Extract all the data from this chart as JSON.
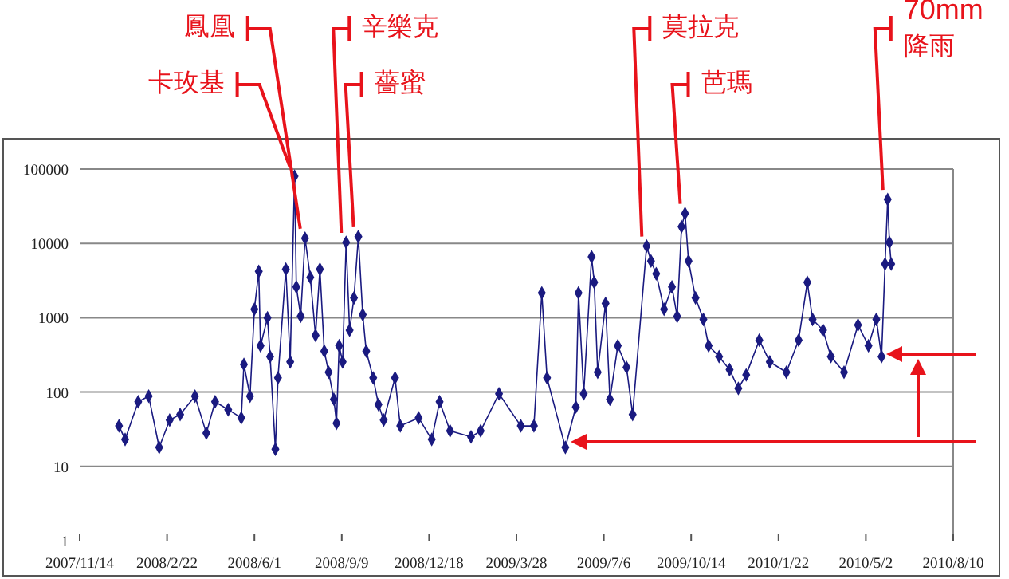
{
  "chart_data": {
    "type": "line",
    "x": [
      "2007-12-29",
      "2008-01-05",
      "2008-01-20",
      "2008-02-01",
      "2008-02-13",
      "2008-02-25",
      "2008-03-08",
      "2008-03-25",
      "2008-04-07",
      "2008-04-17",
      "2008-05-02",
      "2008-05-17",
      "2008-05-20",
      "2008-05-27",
      "2008-06-01",
      "2008-06-06",
      "2008-06-08",
      "2008-06-16",
      "2008-06-19",
      "2008-06-25",
      "2008-06-28",
      "2008-07-07",
      "2008-07-12",
      "2008-07-17",
      "2008-07-19",
      "2008-07-24",
      "2008-07-29",
      "2008-08-04",
      "2008-08-10",
      "2008-08-15",
      "2008-08-20",
      "2008-08-25",
      "2008-08-31",
      "2008-09-03",
      "2008-09-06",
      "2008-09-10",
      "2008-09-14",
      "2008-09-18",
      "2008-09-23",
      "2008-09-28",
      "2008-10-03",
      "2008-10-07",
      "2008-10-15",
      "2008-10-21",
      "2008-10-27",
      "2008-11-09",
      "2008-11-15",
      "2008-12-06",
      "2008-12-21",
      "2008-12-30",
      "2009-01-11",
      "2009-02-04",
      "2009-02-15",
      "2009-03-08",
      "2009-04-02",
      "2009-04-17",
      "2009-04-26",
      "2009-05-02",
      "2009-05-23",
      "2009-06-04",
      "2009-06-07",
      "2009-06-13",
      "2009-06-22",
      "2009-06-25",
      "2009-06-29",
      "2009-07-08",
      "2009-07-13",
      "2009-07-22",
      "2009-08-01",
      "2009-08-08",
      "2009-08-24",
      "2009-08-29",
      "2009-09-04",
      "2009-09-13",
      "2009-09-22",
      "2009-09-28",
      "2009-10-03",
      "2009-10-07",
      "2009-10-11",
      "2009-10-19",
      "2009-10-28",
      "2009-11-03",
      "2009-11-15",
      "2009-11-27",
      "2009-12-07",
      "2009-12-16",
      "2009-12-31",
      "2010-01-12",
      "2010-01-31",
      "2010-02-14",
      "2010-02-24",
      "2010-03-02",
      "2010-03-14",
      "2010-03-23",
      "2010-04-07",
      "2010-04-23",
      "2010-05-05",
      "2010-05-14",
      "2010-05-20",
      "2010-05-24",
      "2010-05-27",
      "2010-05-29",
      "2010-05-31"
    ],
    "series": [
      {
        "color": "#1a1a80",
        "values": [
          35,
          23,
          74,
          88,
          18,
          42,
          50,
          88,
          28,
          74,
          58,
          45,
          235,
          88,
          1300,
          4200,
          420,
          1000,
          300,
          17,
          155,
          4500,
          255,
          80000,
          2600,
          1050,
          11700,
          3500,
          580,
          4500,
          355,
          185,
          80,
          38,
          420,
          255,
          10300,
          680,
          1850,
          12300,
          1100,
          355,
          155,
          68,
          42,
          155,
          35,
          45,
          23,
          74,
          30,
          25,
          30,
          95,
          35,
          35,
          2160,
          155,
          18,
          63,
          2160,
          95,
          6600,
          3000,
          185,
          1560,
          80,
          420,
          215,
          50,
          9200,
          5800,
          3900,
          1300,
          2600,
          1040,
          16800,
          25300,
          5800,
          1850,
          950,
          420,
          300,
          200,
          112,
          170,
          500,
          255,
          185,
          500,
          3000,
          950,
          680,
          300,
          185,
          800,
          420,
          950,
          300,
          5300,
          39000,
          10300,
          5300
        ]
      }
    ],
    "log": "y",
    "ylim": [
      1,
      100000
    ],
    "yticks": [
      1,
      10,
      100,
      1000,
      10000,
      100000
    ],
    "xlim": [
      "2007-11-14",
      "2010-08-10"
    ],
    "xticks": [
      {
        "value": "2007-11-14",
        "label": "2007/11/14"
      },
      {
        "value": "2008-02-22",
        "label": "2008/2/22"
      },
      {
        "value": "2008-06-01",
        "label": "2008/6/1"
      },
      {
        "value": "2008-09-09",
        "label": "2008/9/9"
      },
      {
        "value": "2008-12-18",
        "label": "2008/12/18"
      },
      {
        "value": "2009-03-28",
        "label": "2009/3/28"
      },
      {
        "value": "2009-07-06",
        "label": "2009/7/6"
      },
      {
        "value": "2009-10-14",
        "label": "2009/10/14"
      },
      {
        "value": "2010-01-22",
        "label": "2010/1/22"
      },
      {
        "value": "2010-05-02",
        "label": "2010/5/2"
      },
      {
        "value": "2010-08-10",
        "label": "2010/8/10"
      }
    ],
    "grid": "y",
    "marker": "diamond",
    "annotations": [
      {
        "text": "卡玫基",
        "x": "2008-07-17",
        "y": 80000
      },
      {
        "text": "鳳凰",
        "x": "2008-07-29",
        "y": 11700
      },
      {
        "text": "辛樂克",
        "x": "2008-09-14",
        "y": 10300
      },
      {
        "text": "薔蜜",
        "x": "2008-09-28",
        "y": 12300
      },
      {
        "text": "莫拉克",
        "x": "2009-08-24",
        "y": 9200
      },
      {
        "text": "芭瑪",
        "x": "2009-10-07",
        "y": 25300
      },
      {
        "text": "70mm 降雨",
        "x": "2010-05-27",
        "y": 39000
      }
    ]
  }
}
